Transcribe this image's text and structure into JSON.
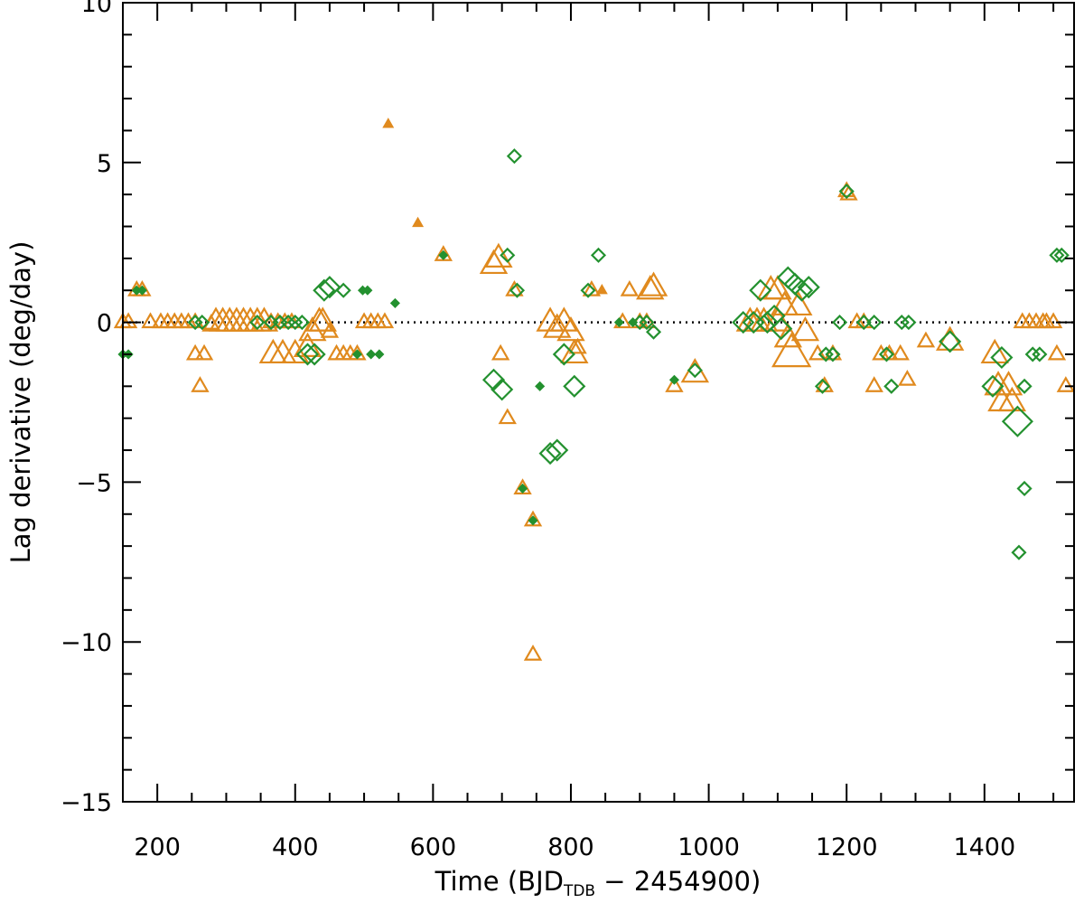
{
  "chart_data": {
    "type": "scatter",
    "xlabel_parts": {
      "main": "Time (BJD",
      "sub": "TDB",
      "tail": " − 2454900)"
    },
    "ylabel": "Lag derivative (deg/day)",
    "xlim": [
      150,
      1530
    ],
    "ylim": [
      -15,
      10
    ],
    "xticks": [
      200,
      400,
      600,
      800,
      1000,
      1200,
      1400
    ],
    "xtick_labels": [
      "200",
      "400",
      "600",
      "800",
      "1000",
      "1200",
      "1400"
    ],
    "yticks": [
      -15,
      -10,
      -5,
      0,
      5,
      10
    ],
    "ytick_labels": [
      "−15",
      "−10",
      "−5",
      "0",
      "5",
      "10"
    ],
    "x_minor_step": 50,
    "y_minor_step": 1,
    "reference_line": {
      "y": 0,
      "style": "dotted"
    },
    "colors": {
      "orange": "#e08a1e",
      "green": "#23912f"
    },
    "grid": false,
    "legend": "none",
    "series": [
      {
        "marker": "triangle",
        "color": "#e08a1e",
        "points": [
          [
            150,
            0,
            1
          ],
          [
            158,
            0,
            1
          ],
          [
            170,
            1.0,
            1
          ],
          [
            178,
            1.0,
            1
          ],
          [
            190,
            0,
            1
          ],
          [
            205,
            0,
            1
          ],
          [
            215,
            0,
            1
          ],
          [
            225,
            0,
            1
          ],
          [
            235,
            0,
            1
          ],
          [
            245,
            0,
            1
          ],
          [
            255,
            0,
            1
          ],
          [
            255,
            -1.0,
            1
          ],
          [
            268,
            -1.0,
            1
          ],
          [
            262,
            -2.0,
            1
          ],
          [
            278,
            -0.05,
            1
          ],
          [
            285,
            0,
            2
          ],
          [
            295,
            0,
            2
          ],
          [
            305,
            0,
            2
          ],
          [
            315,
            0,
            2
          ],
          [
            325,
            0,
            2
          ],
          [
            335,
            0,
            2
          ],
          [
            345,
            0,
            2
          ],
          [
            355,
            0,
            2
          ],
          [
            365,
            0,
            1
          ],
          [
            375,
            0,
            1
          ],
          [
            385,
            0,
            1
          ],
          [
            395,
            0,
            1
          ],
          [
            368,
            -1.0,
            2
          ],
          [
            382,
            -1.0,
            2
          ],
          [
            400,
            -1.0,
            2
          ],
          [
            418,
            -0.8,
            2
          ],
          [
            425,
            -0.3,
            2
          ],
          [
            435,
            0,
            2
          ],
          [
            440,
            0,
            2
          ],
          [
            450,
            -0.3,
            1
          ],
          [
            460,
            -1.0,
            1
          ],
          [
            470,
            -1.0,
            1
          ],
          [
            480,
            -1.0,
            1
          ],
          [
            490,
            -1.0,
            1
          ],
          [
            500,
            0,
            1
          ],
          [
            510,
            0,
            1
          ],
          [
            520,
            0,
            1
          ],
          [
            530,
            0,
            1
          ],
          [
            535,
            6.2,
            0
          ],
          [
            578,
            3.1,
            0
          ],
          [
            615,
            2.1,
            1
          ],
          [
            688,
            1.8,
            2
          ],
          [
            695,
            2.0,
            2
          ],
          [
            698,
            -1.0,
            1
          ],
          [
            708,
            -3.0,
            1
          ],
          [
            718,
            1.0,
            1
          ],
          [
            730,
            -5.2,
            1
          ],
          [
            745,
            -6.2,
            1
          ],
          [
            745,
            -10.4,
            1
          ],
          [
            770,
            0,
            2
          ],
          [
            780,
            -0.2,
            2
          ],
          [
            790,
            0,
            2
          ],
          [
            800,
            -0.3,
            2
          ],
          [
            805,
            -1.0,
            2
          ],
          [
            810,
            -0.8,
            1
          ],
          [
            830,
            1.0,
            1
          ],
          [
            845,
            1.0,
            0
          ],
          [
            875,
            0,
            1
          ],
          [
            885,
            1.0,
            1
          ],
          [
            900,
            0,
            1
          ],
          [
            910,
            0,
            1
          ],
          [
            915,
            1.0,
            2
          ],
          [
            920,
            1.1,
            2
          ],
          [
            950,
            -2.0,
            1
          ],
          [
            980,
            -1.6,
            2
          ],
          [
            1060,
            0,
            2
          ],
          [
            1070,
            0,
            2
          ],
          [
            1080,
            0,
            2
          ],
          [
            1090,
            1.0,
            2
          ],
          [
            1100,
            1.0,
            2
          ],
          [
            1100,
            0,
            2
          ],
          [
            1110,
            0.5,
            2
          ],
          [
            1115,
            -0.5,
            2
          ],
          [
            1120,
            -1.0,
            3
          ],
          [
            1130,
            0.5,
            2
          ],
          [
            1140,
            -0.3,
            2
          ],
          [
            1158,
            -1.0,
            1
          ],
          [
            1168,
            -2.0,
            1
          ],
          [
            1180,
            -1.0,
            1
          ],
          [
            1200,
            4.1,
            1
          ],
          [
            1203,
            4.0,
            1
          ],
          [
            1215,
            0,
            1
          ],
          [
            1225,
            0,
            1
          ],
          [
            1240,
            -2.0,
            1
          ],
          [
            1250,
            -1.0,
            1
          ],
          [
            1262,
            -1.0,
            1
          ],
          [
            1278,
            -1.0,
            1
          ],
          [
            1288,
            -1.8,
            1
          ],
          [
            1315,
            -0.6,
            1
          ],
          [
            1350,
            -0.6,
            2
          ],
          [
            1415,
            -1.0,
            2
          ],
          [
            1420,
            -2.0,
            2
          ],
          [
            1425,
            -2.5,
            2
          ],
          [
            1435,
            -2.0,
            2
          ],
          [
            1440,
            -2.5,
            2
          ],
          [
            1455,
            0,
            1
          ],
          [
            1465,
            0,
            1
          ],
          [
            1475,
            0,
            1
          ],
          [
            1485,
            0,
            1
          ],
          [
            1490,
            0,
            1
          ],
          [
            1500,
            0,
            1
          ],
          [
            1505,
            -1.0,
            1
          ],
          [
            1518,
            -2.0,
            1
          ]
        ]
      },
      {
        "marker": "diamond",
        "color": "#23912f",
        "points": [
          [
            150,
            -1.0,
            0
          ],
          [
            158,
            -1.0,
            0
          ],
          [
            170,
            1.0,
            0
          ],
          [
            178,
            1.0,
            0
          ],
          [
            255,
            0,
            1
          ],
          [
            265,
            0,
            1
          ],
          [
            345,
            0,
            1
          ],
          [
            365,
            0,
            1
          ],
          [
            378,
            0,
            1
          ],
          [
            390,
            0,
            1
          ],
          [
            400,
            0,
            1
          ],
          [
            410,
            0,
            1
          ],
          [
            418,
            -1.0,
            2
          ],
          [
            428,
            -1.0,
            2
          ],
          [
            442,
            1.0,
            2
          ],
          [
            450,
            1.1,
            2
          ],
          [
            470,
            1.0,
            1
          ],
          [
            490,
            -1.0,
            0
          ],
          [
            498,
            1.0,
            0
          ],
          [
            505,
            1.0,
            0
          ],
          [
            510,
            -1.0,
            0
          ],
          [
            522,
            -1.0,
            0
          ],
          [
            545,
            0.6,
            0
          ],
          [
            615,
            2.1,
            0
          ],
          [
            688,
            -1.8,
            2
          ],
          [
            700,
            -2.1,
            2
          ],
          [
            708,
            2.1,
            1
          ],
          [
            718,
            5.2,
            1
          ],
          [
            722,
            1.0,
            1
          ],
          [
            730,
            -5.2,
            0
          ],
          [
            745,
            -6.2,
            0
          ],
          [
            755,
            -2.0,
            0
          ],
          [
            770,
            -4.1,
            2
          ],
          [
            780,
            -4.0,
            2
          ],
          [
            790,
            -1.0,
            2
          ],
          [
            805,
            -2.0,
            2
          ],
          [
            825,
            1.0,
            1
          ],
          [
            840,
            2.1,
            1
          ],
          [
            870,
            0,
            0
          ],
          [
            890,
            0,
            0
          ],
          [
            900,
            0,
            1
          ],
          [
            910,
            0,
            1
          ],
          [
            920,
            -0.3,
            1
          ],
          [
            950,
            -1.8,
            0
          ],
          [
            980,
            -1.5,
            1
          ],
          [
            1050,
            0,
            2
          ],
          [
            1065,
            0,
            2
          ],
          [
            1075,
            1.0,
            2
          ],
          [
            1085,
            0,
            2
          ],
          [
            1095,
            0.2,
            2
          ],
          [
            1105,
            -0.2,
            2
          ],
          [
            1115,
            1.4,
            2
          ],
          [
            1125,
            1.2,
            2
          ],
          [
            1135,
            1.0,
            2
          ],
          [
            1145,
            1.1,
            2
          ],
          [
            1165,
            -2.0,
            1
          ],
          [
            1170,
            -1.0,
            1
          ],
          [
            1180,
            -1.0,
            1
          ],
          [
            1190,
            0,
            1
          ],
          [
            1200,
            4.1,
            1
          ],
          [
            1225,
            0,
            1
          ],
          [
            1240,
            0,
            1
          ],
          [
            1258,
            -1.0,
            1
          ],
          [
            1265,
            -2.0,
            1
          ],
          [
            1280,
            0,
            1
          ],
          [
            1290,
            0,
            1
          ],
          [
            1350,
            -0.6,
            2
          ],
          [
            1412,
            -2.0,
            2
          ],
          [
            1425,
            -1.1,
            2
          ],
          [
            1448,
            -3.1,
            3
          ],
          [
            1458,
            -5.2,
            1
          ],
          [
            1450,
            -7.2,
            1
          ],
          [
            1458,
            -2.0,
            1
          ],
          [
            1470,
            -1.0,
            1
          ],
          [
            1480,
            -1.0,
            1
          ],
          [
            1505,
            2.1,
            1
          ],
          [
            1512,
            2.1,
            1
          ]
        ]
      }
    ]
  }
}
